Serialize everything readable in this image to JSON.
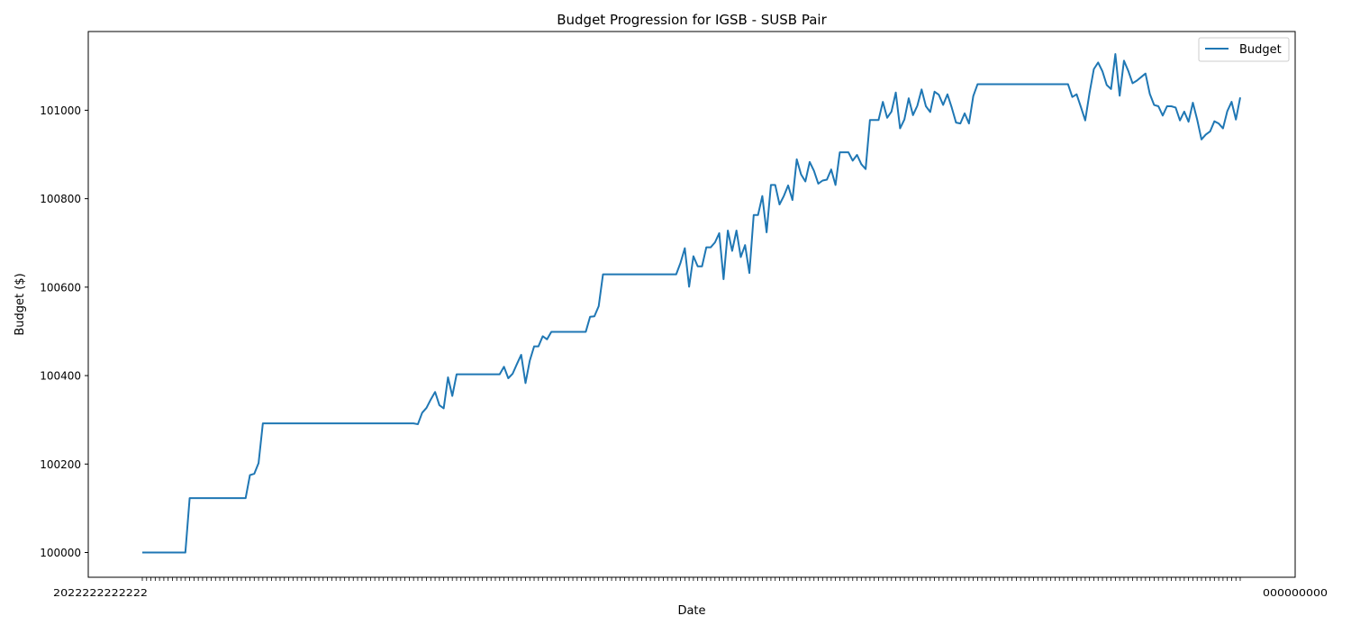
{
  "chart_data": {
    "type": "line",
    "title": "Budget Progression for IGSB - SUSB Pair",
    "xlabel": "Date",
    "ylabel": "Budget ($)",
    "y_ticks": [
      100000,
      100200,
      100400,
      100600,
      100800,
      101000
    ],
    "ylim": [
      99944,
      101178
    ],
    "x_tick_labels_note": "overlapping, illegible date labels",
    "grid": false,
    "legend_position": "upper right",
    "line_color": "#1f77b4",
    "series": [
      {
        "name": "Budget",
        "values": [
          100000,
          100000,
          100000,
          100000,
          100000,
          100000,
          100000,
          100000,
          100000,
          100000,
          100000,
          100123,
          100123,
          100123,
          100123,
          100123,
          100123,
          100123,
          100123,
          100123,
          100123,
          100123,
          100123,
          100123,
          100123,
          100175,
          100178,
          100202,
          100292,
          100292,
          100292,
          100292,
          100292,
          100292,
          100292,
          100292,
          100292,
          100292,
          100292,
          100292,
          100292,
          100292,
          100292,
          100292,
          100292,
          100292,
          100292,
          100292,
          100292,
          100292,
          100292,
          100292,
          100292,
          100292,
          100292,
          100292,
          100292,
          100292,
          100292,
          100292,
          100292,
          100292,
          100292,
          100292,
          100290,
          100316,
          100327,
          100346,
          100363,
          100333,
          100326,
          100396,
          100354,
          100403,
          100403,
          100403,
          100403,
          100403,
          100403,
          100403,
          100403,
          100403,
          100403,
          100403,
          100420,
          100394,
          100404,
          100426,
          100447,
          100383,
          100434,
          100466,
          100466,
          100489,
          100482,
          100499,
          100499,
          100499,
          100499,
          100499,
          100499,
          100499,
          100499,
          100499,
          100533,
          100534,
          100557,
          100629,
          100629,
          100629,
          100629,
          100629,
          100629,
          100629,
          100629,
          100629,
          100629,
          100629,
          100629,
          100629,
          100629,
          100629,
          100629,
          100629,
          100629,
          100655,
          100688,
          100601,
          100670,
          100647,
          100647,
          100690,
          100690,
          100701,
          100722,
          100618,
          100728,
          100682,
          100728,
          100668,
          100695,
          100632,
          100763,
          100763,
          100806,
          100724,
          100831,
          100831,
          100787,
          100806,
          100830,
          100797,
          100889,
          100855,
          100839,
          100883,
          100863,
          100834,
          100841,
          100843,
          100866,
          100831,
          100905,
          100905,
          100905,
          100886,
          100899,
          100878,
          100867,
          100978,
          100978,
          100978,
          101019,
          100983,
          100997,
          101040,
          100959,
          100979,
          101027,
          100989,
          101010,
          101047,
          101009,
          100996,
          101042,
          101035,
          101012,
          101036,
          101006,
          100972,
          100970,
          100993,
          100970,
          101032,
          101059,
          101059,
          101059,
          101059,
          101059,
          101059,
          101059,
          101059,
          101059,
          101059,
          101059,
          101059,
          101059,
          101059,
          101059,
          101059,
          101059,
          101059,
          101059,
          101059,
          101059,
          101059,
          101030,
          101036,
          101007,
          100977,
          101039,
          101093,
          101108,
          101088,
          101057,
          101048,
          101127,
          101033,
          101112,
          101089,
          101061,
          101067,
          101075,
          101083,
          101037,
          101012,
          101009,
          100988,
          101009,
          101009,
          101006,
          100977,
          100997,
          100974,
          101017,
          100979,
          100934,
          100945,
          100952,
          100975,
          100970,
          100959,
          100998,
          101019,
          100979,
          101029
        ]
      }
    ]
  }
}
